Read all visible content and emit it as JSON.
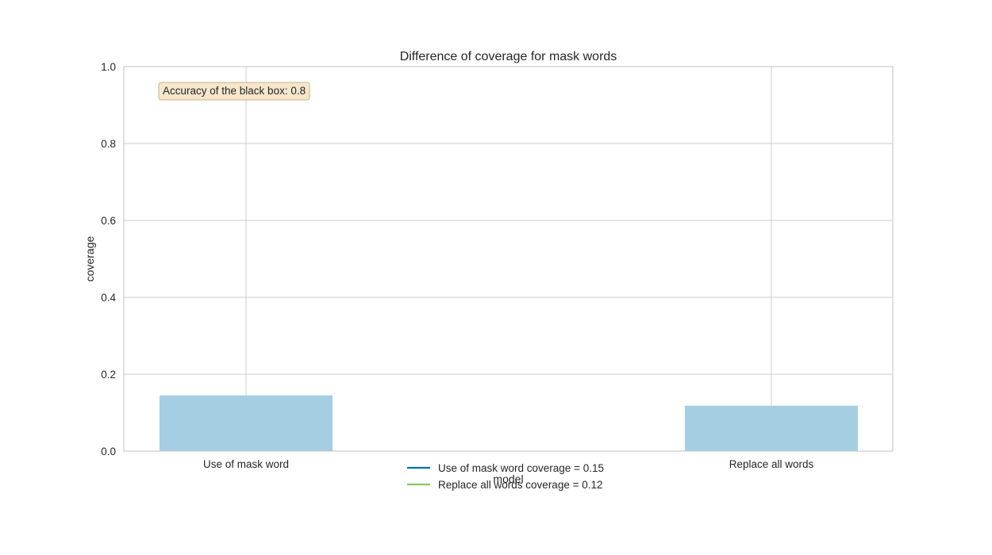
{
  "chart_data": {
    "type": "bar",
    "title": "Difference of coverage for mask words",
    "xlabel": "model",
    "ylabel": "coverage",
    "categories": [
      "Use of mask word",
      "Replace all words"
    ],
    "values": [
      0.145,
      0.118
    ],
    "ylim": [
      0,
      1.0
    ],
    "yticks": [
      "0.0",
      "0.2",
      "0.4",
      "0.6",
      "0.8",
      "1.0"
    ],
    "grid": true,
    "bar_color": "#a6cee3",
    "annotation": "Accuracy of the black box: 0.8",
    "legend": {
      "placement": "bottom-center",
      "entries": [
        {
          "label": "Use of mask word coverage = 0.15",
          "color": "#0072b2"
        },
        {
          "label": "Replace all words coverage = 0.12",
          "color": "#8cc665"
        }
      ]
    }
  }
}
